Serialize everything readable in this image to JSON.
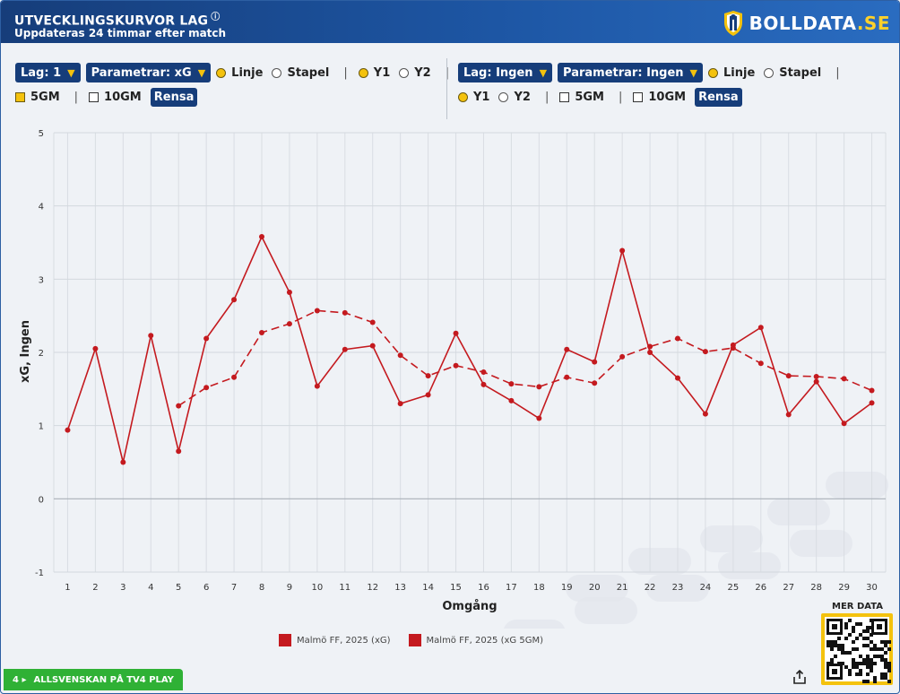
{
  "header": {
    "title": "UTVECKLINGSKURVOR LAG",
    "info_glyph": "ⓘ",
    "subtitle": "Uppdateras 24 timmar efter match",
    "logo_name": "BOLLDATA",
    "logo_tld": ".SE"
  },
  "left_controls": {
    "team_dropdown": "Lag: 1",
    "param_dropdown": "Parametrar: xG",
    "line_label": "Linje",
    "bar_label": "Stapel",
    "y1_label": "Y1",
    "y2_label": "Y2",
    "gm5_label": "5GM",
    "gm10_label": "10GM",
    "clear_label": "Rensa",
    "line_selected": true,
    "y1_selected": true,
    "gm5_checked": true,
    "gm10_checked": false
  },
  "right_controls": {
    "team_dropdown": "Lag: Ingen",
    "param_dropdown": "Parametrar: Ingen",
    "line_label": "Linje",
    "bar_label": "Stapel",
    "y1_label": "Y1",
    "y2_label": "Y2",
    "gm5_label": "5GM",
    "gm10_label": "10GM",
    "clear_label": "Rensa",
    "line_selected": true,
    "y1_selected": true,
    "gm5_checked": false,
    "gm10_checked": false
  },
  "footer": {
    "tv4_number": "4",
    "tv4_label": "ALLSVENSKAN PÅ TV4 PLAY",
    "mer_data": "MER DATA",
    "share_icon": "share-icon"
  },
  "colors": {
    "series": "#c41a1f",
    "header_dark": "#163d7a",
    "accent_yellow": "#f4c20d",
    "tv4_green": "#2fb135"
  },
  "chart_data": {
    "type": "line",
    "xlabel": "Omgång",
    "ylabel": "xG, Ingen",
    "ylim": [
      -1,
      5
    ],
    "yticks": [
      -1,
      0,
      1,
      2,
      3,
      4,
      5
    ],
    "x": [
      1,
      2,
      3,
      4,
      5,
      6,
      7,
      8,
      9,
      10,
      11,
      12,
      13,
      14,
      15,
      16,
      17,
      18,
      19,
      20,
      21,
      22,
      23,
      24,
      25,
      26,
      27,
      28,
      29,
      30
    ],
    "grid": true,
    "legend_position": "bottom",
    "series": [
      {
        "name": "Malmö FF, 2025 (xG)",
        "style": "solid",
        "x": [
          1,
          2,
          3,
          4,
          5,
          6,
          7,
          8,
          9,
          10,
          11,
          12,
          13,
          14,
          15,
          16,
          17,
          18,
          19,
          20,
          21,
          22,
          23,
          24,
          25,
          26,
          27,
          28,
          29,
          30
        ],
        "values": [
          0.94,
          2.05,
          0.5,
          2.23,
          0.65,
          2.19,
          2.72,
          3.58,
          2.82,
          1.54,
          2.04,
          2.09,
          1.3,
          1.42,
          2.26,
          1.56,
          1.34,
          1.1,
          2.04,
          1.87,
          3.39,
          2.0,
          1.65,
          1.16,
          2.1,
          2.34,
          1.15,
          1.6,
          1.03,
          1.31
        ]
      },
      {
        "name": "Malmö FF, 2025 (xG 5GM)",
        "style": "dashed",
        "x": [
          5,
          6,
          7,
          8,
          9,
          10,
          11,
          12,
          13,
          14,
          15,
          16,
          17,
          18,
          19,
          20,
          21,
          22,
          23,
          24,
          25,
          26,
          27,
          28,
          29,
          30
        ],
        "values": [
          1.27,
          1.52,
          1.66,
          2.27,
          2.39,
          2.57,
          2.54,
          2.41,
          1.96,
          1.68,
          1.82,
          1.73,
          1.57,
          1.53,
          1.66,
          1.58,
          1.94,
          2.08,
          2.19,
          2.01,
          2.06,
          1.85,
          1.68,
          1.67,
          1.64,
          1.48
        ]
      }
    ]
  }
}
